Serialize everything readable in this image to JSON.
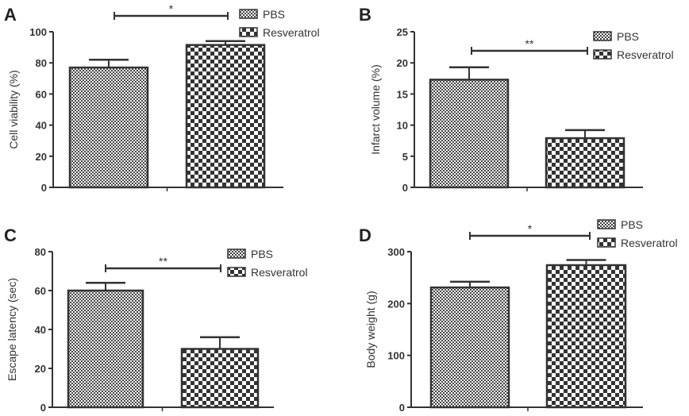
{
  "chart_data": [
    {
      "panel": "A",
      "type": "bar",
      "categories": [
        "PBS",
        "Resveratrol"
      ],
      "values": [
        77,
        91.5
      ],
      "errors": [
        5,
        2.5
      ],
      "ylabel": "Cell viability (%)",
      "ylim": [
        0,
        100
      ],
      "yticks": [
        "0",
        "20",
        "40",
        "60",
        "80",
        "100"
      ],
      "significance": "*",
      "legend": [
        "PBS",
        "Resveratrol"
      ],
      "legend_position": "top-right"
    },
    {
      "panel": "B",
      "type": "bar",
      "categories": [
        "PBS",
        "Resveratrol"
      ],
      "values": [
        17.3,
        7.9
      ],
      "errors": [
        2.0,
        1.3
      ],
      "ylabel": "Infarct volume (%)",
      "ylim": [
        0,
        25
      ],
      "yticks": [
        "0",
        "5",
        "10",
        "15",
        "20",
        "25"
      ],
      "significance": "**",
      "legend": [
        "PBS",
        "Resveratrol"
      ],
      "legend_position": "top-right"
    },
    {
      "panel": "C",
      "type": "bar",
      "categories": [
        "PBS",
        "Resveratrol"
      ],
      "values": [
        60,
        30
      ],
      "errors": [
        4,
        6
      ],
      "ylabel": "Escape latency (sec)",
      "ylim": [
        0,
        80
      ],
      "yticks": [
        "0",
        "20",
        "40",
        "60",
        "80"
      ],
      "significance": "**",
      "legend": [
        "PBS",
        "Resveratrol"
      ],
      "legend_position": "top-right"
    },
    {
      "panel": "D",
      "type": "bar",
      "categories": [
        "PBS",
        "Resveratrol"
      ],
      "values": [
        231,
        274
      ],
      "errors": [
        11,
        10
      ],
      "ylabel": "Body weight (g)",
      "ylim": [
        0,
        300
      ],
      "yticks": [
        "0",
        "100",
        "200",
        "300"
      ],
      "significance": "*",
      "legend": [
        "PBS",
        "Resveratrol"
      ],
      "legend_position": "top-right"
    }
  ],
  "colors": {
    "stroke": "#333333",
    "fill_dark": "#333333",
    "fill_light": "#ffffff"
  }
}
